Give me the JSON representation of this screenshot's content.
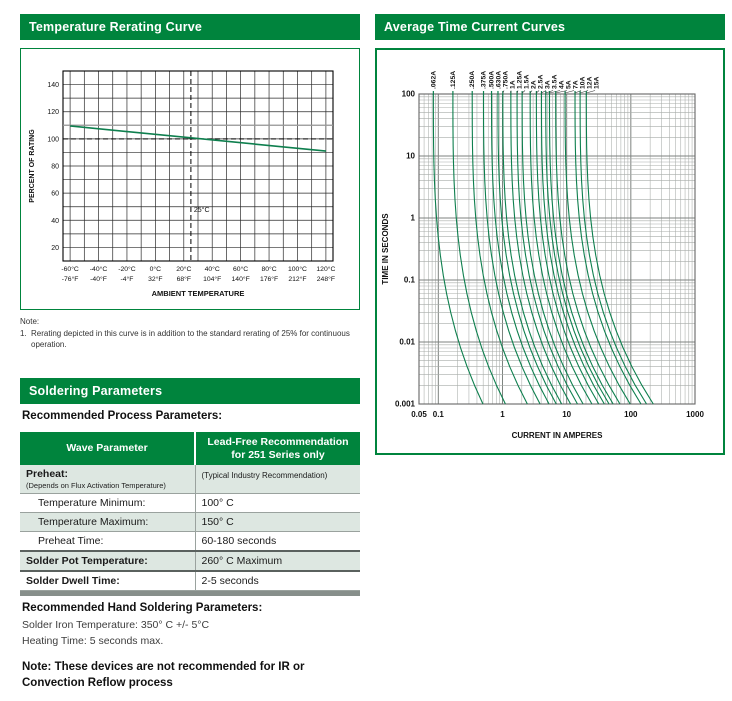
{
  "colors": {
    "brand_green": "#00843d",
    "curve_green": "#0e7f4e",
    "table_shaded_row": "#dde7e1",
    "table_bottom_bar": "#878f8b",
    "grid_gray_minor": "#a8aca9",
    "grid_gray_major": "#7d827f"
  },
  "left": {
    "section1_title": "Temperature Rerating Curve",
    "note": {
      "label": "Note:",
      "item_number": "1.",
      "text": "Rerating depicted in this curve is in addition to the standard rerating of 25% for continuous operation."
    },
    "section2_title": "Soldering Parameters",
    "process_title": "Recommended Process Parameters:",
    "table": {
      "col1_header": "Wave Parameter",
      "col2_header": "Lead-Free Recommendation for 251 Series only",
      "rows": [
        {
          "param": "Preheat:",
          "param_sub": "(Depends on Flux Activation Temperature)",
          "value": "(Typical Industry Recommendation)"
        },
        {
          "param": "Temperature Minimum:",
          "value": "100° C"
        },
        {
          "param": "Temperature Maximum:",
          "value": "150° C"
        },
        {
          "param": "Preheat Time:",
          "value": "60-180 seconds"
        },
        {
          "param": "Solder Pot Temperature:",
          "value": "260° C Maximum"
        },
        {
          "param": "Solder Dwell Time:",
          "value": "2-5 seconds"
        }
      ]
    },
    "hand_title": "Recommended Hand Soldering Parameters:",
    "hand_lines": [
      "Solder Iron Temperature: 350° C +/- 5°C",
      "Heating Time: 5 seconds max."
    ],
    "reflow_note": "Note: These devices are not recommended for IR or Convection Reflow process"
  },
  "right": {
    "section_title": "Average Time Current Curves"
  },
  "chart_data": [
    {
      "type": "line",
      "title": "Temperature Rerating Curve",
      "xlabel": "AMBIENT TEMPERATURE",
      "ylabel": "PERCENT OF RATING",
      "xlim": [
        -65,
        125
      ],
      "ylim": [
        10,
        150
      ],
      "grid": true,
      "grid_step_x": 10,
      "grid_step_y": 10,
      "x_ticks": [
        {
          "v": -60,
          "c": "-60°C",
          "f": "-76°F"
        },
        {
          "v": -40,
          "c": "-40°C",
          "f": "-40°F"
        },
        {
          "v": -20,
          "c": "-20°C",
          "f": "-4°F"
        },
        {
          "v": 0,
          "c": "0°C",
          "f": "32°F"
        },
        {
          "v": 20,
          "c": "20°C",
          "f": "68°F"
        },
        {
          "v": 40,
          "c": "40°C",
          "f": "104°F"
        },
        {
          "v": 60,
          "c": "60°C",
          "f": "140°F"
        },
        {
          "v": 80,
          "c": "80°C",
          "f": "176°F"
        },
        {
          "v": 100,
          "c": "100°C",
          "f": "212°F"
        },
        {
          "v": 120,
          "c": "120°C",
          "f": "248°F"
        }
      ],
      "y_ticks": [
        20,
        40,
        60,
        80,
        100,
        120,
        140
      ],
      "series": [
        {
          "name": "rerating-curve",
          "points": [
            [
              -60,
              109.5
            ],
            [
              120,
              91
            ]
          ]
        }
      ],
      "reference_lines": {
        "solid_gray_y": 110,
        "dashed_horizontal_y": 100,
        "dashed_vertical_x": 25,
        "dashed_vertical_label": "25°C"
      }
    },
    {
      "type": "line",
      "scale": "log-log",
      "title": "Average Time Current Curves",
      "xlabel": "CURRENT IN AMPERES",
      "ylabel": "TIME IN SECONDS",
      "xlim": [
        0.05,
        1000
      ],
      "ylim": [
        0.001,
        100
      ],
      "grid": true,
      "x_ticks": [
        {
          "v": 0.05,
          "label": "0.05"
        },
        {
          "v": 0.1,
          "label": "0.1"
        },
        {
          "v": 1,
          "label": "1"
        },
        {
          "v": 10,
          "label": "10"
        },
        {
          "v": 100,
          "label": "100"
        },
        {
          "v": 1000,
          "label": "1000"
        }
      ],
      "y_ticks": [
        {
          "v": 100,
          "label": "100"
        },
        {
          "v": 10,
          "label": "10"
        },
        {
          "v": 1,
          "label": "1"
        },
        {
          "v": 0.1,
          "label": "0.1"
        },
        {
          "v": 0.01,
          "label": "0.01"
        },
        {
          "v": 0.001,
          "label": "0.001"
        }
      ],
      "series": [
        {
          "label": ".062A",
          "amps": 0.062
        },
        {
          "label": ".125A",
          "amps": 0.125
        },
        {
          "label": ".250A",
          "amps": 0.25
        },
        {
          "label": ".375A",
          "amps": 0.375
        },
        {
          "label": ".500A",
          "amps": 0.5
        },
        {
          "label": ".630A",
          "amps": 0.63
        },
        {
          "label": ".750A",
          "amps": 0.75
        },
        {
          "label": "1A",
          "amps": 1
        },
        {
          "label": "1.25A",
          "amps": 1.25
        },
        {
          "label": "1.5A",
          "amps": 1.5
        },
        {
          "label": "2A",
          "amps": 2
        },
        {
          "label": "2.5A",
          "amps": 2.5
        },
        {
          "label": "3A",
          "amps": 3
        },
        {
          "label": "3.5A",
          "amps": 3.5
        },
        {
          "label": "4A",
          "amps": 4
        },
        {
          "label": "5A",
          "amps": 5
        },
        {
          "label": "7A",
          "amps": 7
        },
        {
          "label": "10A",
          "amps": 10
        },
        {
          "label": "12A",
          "amps": 12
        },
        {
          "label": "15A",
          "amps": 15
        }
      ]
    }
  ]
}
